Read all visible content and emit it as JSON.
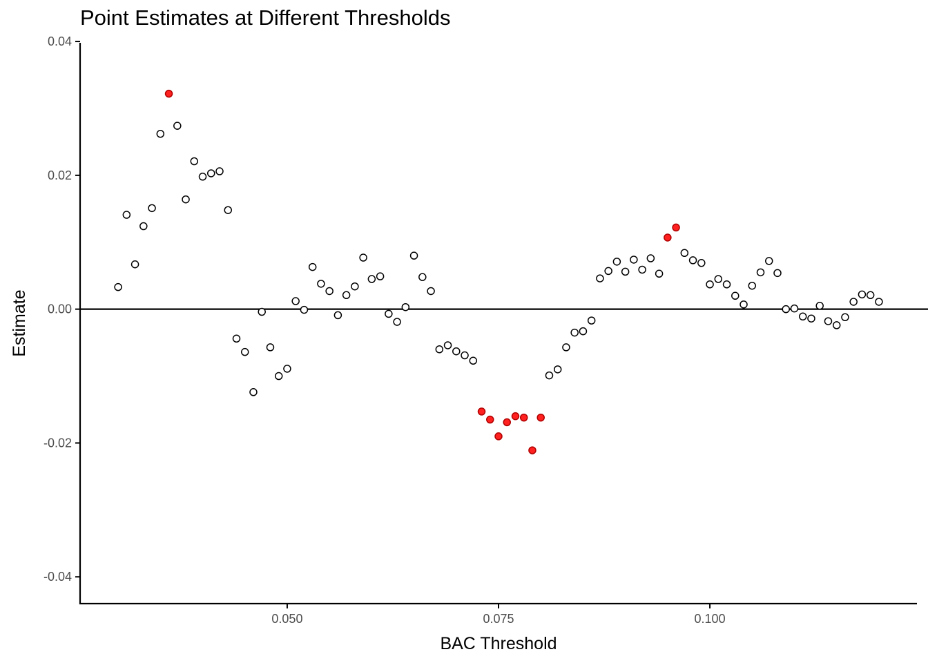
{
  "chart_data": {
    "type": "scatter",
    "title": "Point Estimates at Different Thresholds",
    "xlabel": "BAC Threshold",
    "ylabel": "Estimate",
    "xlim": [
      0.0255,
      0.1245
    ],
    "ylim": [
      -0.044,
      0.0398
    ],
    "x_ticks": [
      0.05,
      0.075,
      0.1
    ],
    "x_tick_labels": [
      "0.050",
      "0.075",
      "0.100"
    ],
    "y_ticks": [
      0.04,
      0.02,
      0.0,
      -0.02,
      -0.04
    ],
    "y_tick_labels": [
      "0.04",
      "0.02",
      "0.00",
      "-0.02",
      "-0.04"
    ],
    "reference_line_y": 0.0,
    "grid": false,
    "colors": {
      "highlight": "#ff2020",
      "normal": "#ffffff",
      "outline": "#000000"
    },
    "points": [
      {
        "x": 0.03,
        "y": 0.0033,
        "h": false
      },
      {
        "x": 0.031,
        "y": 0.0141,
        "h": false
      },
      {
        "x": 0.032,
        "y": 0.0067,
        "h": false
      },
      {
        "x": 0.033,
        "y": 0.0124,
        "h": false
      },
      {
        "x": 0.034,
        "y": 0.0151,
        "h": false
      },
      {
        "x": 0.035,
        "y": 0.0262,
        "h": false
      },
      {
        "x": 0.036,
        "y": 0.0322,
        "h": true
      },
      {
        "x": 0.037,
        "y": 0.0274,
        "h": false
      },
      {
        "x": 0.038,
        "y": 0.0164,
        "h": false
      },
      {
        "x": 0.039,
        "y": 0.0221,
        "h": false
      },
      {
        "x": 0.04,
        "y": 0.0198,
        "h": false
      },
      {
        "x": 0.041,
        "y": 0.0203,
        "h": false
      },
      {
        "x": 0.042,
        "y": 0.0206,
        "h": false
      },
      {
        "x": 0.043,
        "y": 0.0148,
        "h": false
      },
      {
        "x": 0.044,
        "y": -0.0044,
        "h": false
      },
      {
        "x": 0.045,
        "y": -0.0064,
        "h": false
      },
      {
        "x": 0.046,
        "y": -0.0124,
        "h": false
      },
      {
        "x": 0.047,
        "y": -0.0004,
        "h": false
      },
      {
        "x": 0.048,
        "y": -0.0057,
        "h": false
      },
      {
        "x": 0.049,
        "y": -0.01,
        "h": false
      },
      {
        "x": 0.05,
        "y": -0.0089,
        "h": false
      },
      {
        "x": 0.051,
        "y": 0.0012,
        "h": false
      },
      {
        "x": 0.052,
        "y": -0.0001,
        "h": false
      },
      {
        "x": 0.053,
        "y": 0.0063,
        "h": false
      },
      {
        "x": 0.054,
        "y": 0.0038,
        "h": false
      },
      {
        "x": 0.055,
        "y": 0.0027,
        "h": false
      },
      {
        "x": 0.056,
        "y": -0.0009,
        "h": false
      },
      {
        "x": 0.057,
        "y": 0.0021,
        "h": false
      },
      {
        "x": 0.058,
        "y": 0.0034,
        "h": false
      },
      {
        "x": 0.059,
        "y": 0.0077,
        "h": false
      },
      {
        "x": 0.06,
        "y": 0.0045,
        "h": false
      },
      {
        "x": 0.061,
        "y": 0.0049,
        "h": false
      },
      {
        "x": 0.062,
        "y": -0.0007,
        "h": false
      },
      {
        "x": 0.063,
        "y": -0.0019,
        "h": false
      },
      {
        "x": 0.064,
        "y": 0.0003,
        "h": false
      },
      {
        "x": 0.065,
        "y": 0.008,
        "h": false
      },
      {
        "x": 0.066,
        "y": 0.0048,
        "h": false
      },
      {
        "x": 0.067,
        "y": 0.0027,
        "h": false
      },
      {
        "x": 0.068,
        "y": -0.006,
        "h": false
      },
      {
        "x": 0.069,
        "y": -0.0054,
        "h": false
      },
      {
        "x": 0.07,
        "y": -0.0063,
        "h": false
      },
      {
        "x": 0.071,
        "y": -0.0069,
        "h": false
      },
      {
        "x": 0.072,
        "y": -0.0077,
        "h": false
      },
      {
        "x": 0.073,
        "y": -0.0153,
        "h": true
      },
      {
        "x": 0.074,
        "y": -0.0165,
        "h": true
      },
      {
        "x": 0.075,
        "y": -0.019,
        "h": true
      },
      {
        "x": 0.076,
        "y": -0.0169,
        "h": true
      },
      {
        "x": 0.077,
        "y": -0.016,
        "h": true
      },
      {
        "x": 0.078,
        "y": -0.0162,
        "h": true
      },
      {
        "x": 0.079,
        "y": -0.0211,
        "h": true
      },
      {
        "x": 0.08,
        "y": -0.0162,
        "h": true
      },
      {
        "x": 0.081,
        "y": -0.0099,
        "h": false
      },
      {
        "x": 0.082,
        "y": -0.009,
        "h": false
      },
      {
        "x": 0.083,
        "y": -0.0057,
        "h": false
      },
      {
        "x": 0.084,
        "y": -0.0035,
        "h": false
      },
      {
        "x": 0.085,
        "y": -0.0033,
        "h": false
      },
      {
        "x": 0.086,
        "y": -0.0017,
        "h": false
      },
      {
        "x": 0.087,
        "y": 0.0046,
        "h": false
      },
      {
        "x": 0.088,
        "y": 0.0057,
        "h": false
      },
      {
        "x": 0.089,
        "y": 0.0071,
        "h": false
      },
      {
        "x": 0.09,
        "y": 0.0056,
        "h": false
      },
      {
        "x": 0.091,
        "y": 0.0074,
        "h": false
      },
      {
        "x": 0.092,
        "y": 0.0059,
        "h": false
      },
      {
        "x": 0.093,
        "y": 0.0076,
        "h": false
      },
      {
        "x": 0.094,
        "y": 0.0053,
        "h": false
      },
      {
        "x": 0.095,
        "y": 0.0107,
        "h": true
      },
      {
        "x": 0.096,
        "y": 0.0122,
        "h": true
      },
      {
        "x": 0.097,
        "y": 0.0084,
        "h": false
      },
      {
        "x": 0.098,
        "y": 0.0073,
        "h": false
      },
      {
        "x": 0.099,
        "y": 0.0069,
        "h": false
      },
      {
        "x": 0.1,
        "y": 0.0037,
        "h": false
      },
      {
        "x": 0.101,
        "y": 0.0045,
        "h": false
      },
      {
        "x": 0.102,
        "y": 0.0037,
        "h": false
      },
      {
        "x": 0.103,
        "y": 0.002,
        "h": false
      },
      {
        "x": 0.104,
        "y": 0.0007,
        "h": false
      },
      {
        "x": 0.105,
        "y": 0.0035,
        "h": false
      },
      {
        "x": 0.106,
        "y": 0.0055,
        "h": false
      },
      {
        "x": 0.107,
        "y": 0.0072,
        "h": false
      },
      {
        "x": 0.108,
        "y": 0.0054,
        "h": false
      },
      {
        "x": 0.109,
        "y": 0.0,
        "h": false
      },
      {
        "x": 0.11,
        "y": 0.0001,
        "h": false
      },
      {
        "x": 0.111,
        "y": -0.0011,
        "h": false
      },
      {
        "x": 0.112,
        "y": -0.0014,
        "h": false
      },
      {
        "x": 0.113,
        "y": 0.0005,
        "h": false
      },
      {
        "x": 0.114,
        "y": -0.0018,
        "h": false
      },
      {
        "x": 0.115,
        "y": -0.0024,
        "h": false
      },
      {
        "x": 0.116,
        "y": -0.0012,
        "h": false
      },
      {
        "x": 0.117,
        "y": 0.0011,
        "h": false
      },
      {
        "x": 0.118,
        "y": 0.0022,
        "h": false
      },
      {
        "x": 0.119,
        "y": 0.0021,
        "h": false
      },
      {
        "x": 0.12,
        "y": 0.0011,
        "h": false
      }
    ]
  }
}
